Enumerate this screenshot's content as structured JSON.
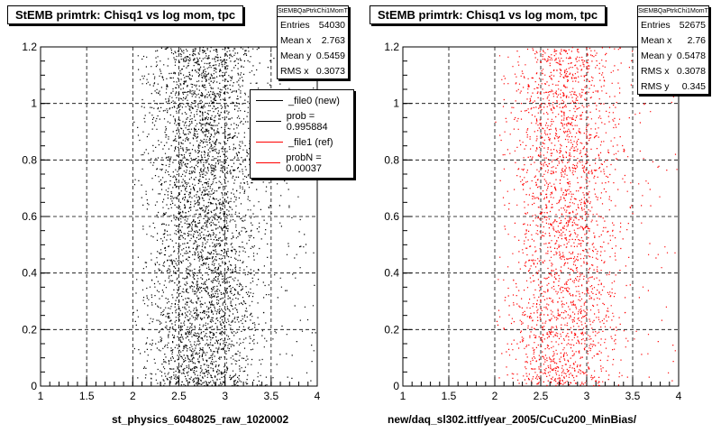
{
  "chart_data": [
    {
      "type": "scatter",
      "title": "StEMB primtrk: Chisq1 vs log mom, tpc",
      "xlabel": "st_physics_6048025_raw_1020002",
      "xlim": [
        1,
        4
      ],
      "ylim": [
        0,
        1.2
      ],
      "x_ticks": [
        "1",
        "1.5",
        "2",
        "2.5",
        "3",
        "3.5",
        "4"
      ],
      "y_ticks": [
        "0",
        "0.2",
        "0.4",
        "0.6",
        "0.8",
        "1",
        "1.2"
      ],
      "grid": true,
      "marker_color": "#000000",
      "points": [],
      "distribution": {
        "x_range": [
          2.0,
          3.55
        ],
        "y_range": [
          0,
          1.2
        ],
        "x_mean": 2.763,
        "y_mean": 0.5459,
        "x_rms": 0.3073
      },
      "stats": {
        "header": "StEMBQaPtrkChi1MomT",
        "rows": [
          {
            "label": "Entries",
            "value": "54030"
          },
          {
            "label": "Mean x",
            "value": "2.763"
          },
          {
            "label": "Mean y",
            "value": "0.5459"
          },
          {
            "label": "RMS x",
            "value": "0.3073"
          }
        ]
      },
      "legend": [
        {
          "label": "_file0 (new)",
          "color": "#000000"
        },
        {
          "label": "prob = 0.995884",
          "color": "#000000"
        },
        {
          "label": "_file1 (ref)",
          "color": "#ff0000"
        },
        {
          "label": "probN = 0.00037",
          "color": "#ff0000"
        }
      ]
    },
    {
      "type": "scatter",
      "title": "StEMB primtrk: Chisq1 vs log mom, tpc",
      "xlabel": "new/daq_sl302.ittf/year_2005/CuCu200_MinBias/",
      "xlim": [
        1,
        4
      ],
      "ylim": [
        0,
        1.2
      ],
      "x_ticks": [
        "1",
        "1.5",
        "2",
        "2.5",
        "3",
        "3.5",
        "4"
      ],
      "y_ticks": [
        "0",
        "0.2",
        "0.4",
        "0.6",
        "0.8",
        "1",
        "1.2"
      ],
      "grid": true,
      "marker_color": "#ff0000",
      "points": [],
      "distribution": {
        "x_range": [
          2.0,
          3.55
        ],
        "y_range": [
          0,
          1.2
        ],
        "x_mean": 2.76,
        "y_mean": 0.5478,
        "x_rms": 0.3078
      },
      "stats": {
        "header": "StEMBQaPtrkChi1MomT",
        "rows": [
          {
            "label": "Entries",
            "value": "52675"
          },
          {
            "label": "Mean x",
            "value": "2.76"
          },
          {
            "label": "Mean y",
            "value": "0.5478"
          },
          {
            "label": "RMS x",
            "value": "0.3078"
          },
          {
            "label": "RMS y",
            "value": "0.345"
          }
        ]
      }
    }
  ]
}
